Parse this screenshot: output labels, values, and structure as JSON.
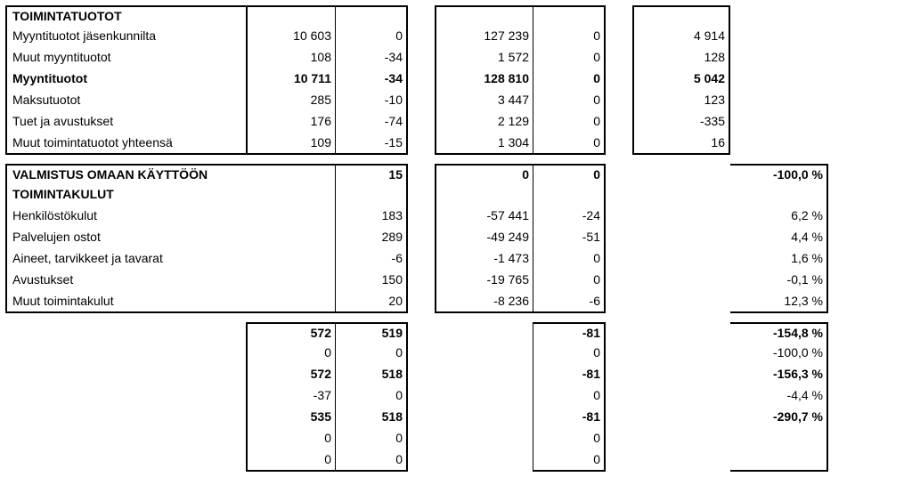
{
  "section1": {
    "header": "TOIMINTATUOTOT",
    "rows": [
      {
        "label": "Myyntituotot jäsenkunnilta",
        "a1": "10 603",
        "a2": "0",
        "b1": "127 239",
        "b2": "0",
        "c": "4 914",
        "bold": false
      },
      {
        "label": "Muut myyntituotot",
        "a1": "108",
        "a2": "-34",
        "b1": "1 572",
        "b2": "0",
        "c": "128",
        "bold": false
      },
      {
        "label": "Myyntituotot",
        "a1": "10 711",
        "a2": "-34",
        "b1": "128 810",
        "b2": "0",
        "c": "5 042",
        "bold": true
      },
      {
        "label": "Maksutuotot",
        "a1": "285",
        "a2": "-10",
        "b1": "3 447",
        "b2": "0",
        "c": "123",
        "bold": false
      },
      {
        "label": "Tuet ja avustukset",
        "a1": "176",
        "a2": "-74",
        "b1": "2 129",
        "b2": "0",
        "c": "-335",
        "bold": false
      },
      {
        "label": "Muut toimintatuotot yhteensä",
        "a1": "109",
        "a2": "-15",
        "b1": "1 304",
        "b2": "0",
        "c": "16",
        "bold": false
      }
    ]
  },
  "section2": {
    "header": "VALMISTUS OMAAN KÄYTTÖÖN",
    "subheader": "TOIMINTAKULUT",
    "headerRow": {
      "a2": "15",
      "b1": "0",
      "b2": "0",
      "d": "-100,0 %"
    },
    "rows": [
      {
        "label": "Henkilöstökulut",
        "a2": "183",
        "b1": "-57 441",
        "b2": "-24",
        "d": "6,2 %"
      },
      {
        "label": "Palvelujen ostot",
        "a2": "289",
        "b1": "-49 249",
        "b2": "-51",
        "d": "4,4 %"
      },
      {
        "label": "Aineet, tarvikkeet ja tavarat",
        "a2": "-6",
        "b1": "-1 473",
        "b2": "0",
        "d": "1,6 %"
      },
      {
        "label": "Avustukset",
        "a2": "150",
        "b1": "-19 765",
        "b2": "0",
        "d": "-0,1 %"
      },
      {
        "label": "Muut toimintakulut",
        "a2": "20",
        "b1": "-8 236",
        "b2": "-6",
        "d": "12,3 %"
      }
    ]
  },
  "section3": {
    "rows": [
      {
        "a1": "572",
        "a2": "519",
        "b2": "-81",
        "d": "-154,8 %",
        "bold": true
      },
      {
        "a1": "0",
        "a2": "0",
        "b2": "0",
        "d": "-100,0 %",
        "bold": false
      },
      {
        "a1": "572",
        "a2": "518",
        "b2": "-81",
        "d": "-156,3 %",
        "bold": true
      },
      {
        "a1": "-37",
        "a2": "0",
        "b2": "0",
        "d": "-4,4 %",
        "bold": false
      },
      {
        "a1": "535",
        "a2": "518",
        "b2": "-81",
        "d": "-290,7 %",
        "bold": true
      },
      {
        "a1": "0",
        "a2": "0",
        "b2": "0",
        "d": "",
        "bold": false
      },
      {
        "a1": "0",
        "a2": "0",
        "b2": "0",
        "d": "",
        "bold": false
      }
    ]
  }
}
